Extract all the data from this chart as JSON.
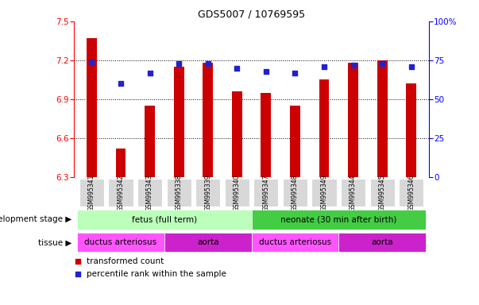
{
  "title": "GDS5007 / 10769595",
  "samples": [
    "GSM995341",
    "GSM995342",
    "GSM995343",
    "GSM995338",
    "GSM995339",
    "GSM995340",
    "GSM995347",
    "GSM995348",
    "GSM995349",
    "GSM995344",
    "GSM995345",
    "GSM995346"
  ],
  "bar_values": [
    7.37,
    6.52,
    6.85,
    7.15,
    7.18,
    6.96,
    6.95,
    6.85,
    7.05,
    7.18,
    7.2,
    7.02
  ],
  "dot_values": [
    74,
    60,
    67,
    73,
    73,
    70,
    68,
    67,
    71,
    72,
    73,
    71
  ],
  "ylim_left": [
    6.3,
    7.5
  ],
  "ylim_right": [
    0,
    100
  ],
  "yticks_left": [
    6.3,
    6.6,
    6.9,
    7.2,
    7.5
  ],
  "yticks_right": [
    0,
    25,
    50,
    75,
    100
  ],
  "bar_color": "#cc0000",
  "dot_color": "#2222cc",
  "bar_bottom": 6.3,
  "development_stages": [
    {
      "label": "fetus (full term)",
      "start": 0,
      "end": 6,
      "color": "#bbffbb"
    },
    {
      "label": "neonate (30 min after birth)",
      "start": 6,
      "end": 12,
      "color": "#44cc44"
    }
  ],
  "tissues": [
    {
      "label": "ductus arteriosus",
      "start": 0,
      "end": 3,
      "color": "#ee44ee"
    },
    {
      "label": "aorta",
      "start": 3,
      "end": 6,
      "color": "#cc44cc"
    },
    {
      "label": "ductus arteriosus",
      "start": 6,
      "end": 9,
      "color": "#ee44ee"
    },
    {
      "label": "aorta",
      "start": 9,
      "end": 12,
      "color": "#cc44cc"
    }
  ],
  "legend_items": [
    {
      "label": "transformed count",
      "color": "#cc0000"
    },
    {
      "label": "percentile rank within the sample",
      "color": "#2222cc"
    }
  ],
  "dev_stage_label": "development stage",
  "tissue_label": "tissue",
  "title_fontsize": 9,
  "tick_fontsize": 7.5,
  "sample_fontsize": 5.5,
  "annotation_fontsize": 7.5
}
